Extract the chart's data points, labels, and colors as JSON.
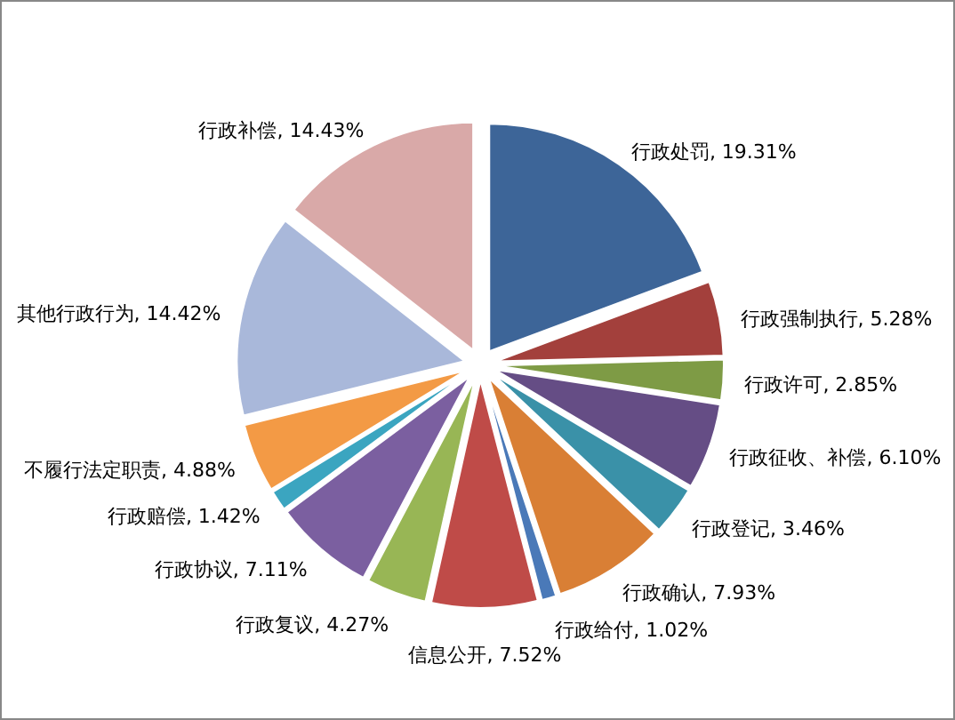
{
  "chart_data": {
    "type": "pie",
    "categories": [
      "行政处罚",
      "行政强制执行",
      "行政许可",
      "行政征收、补偿",
      "行政登记",
      "行政确认",
      "行政给付",
      "信息公开",
      "行政复议",
      "行政协议",
      "行政赔偿",
      "不履行法定职责",
      "其他行政行为",
      "行政补偿"
    ],
    "values": [
      19.31,
      5.28,
      2.85,
      6.1,
      3.46,
      7.93,
      1.02,
      7.52,
      4.27,
      7.11,
      1.42,
      4.88,
      14.42,
      14.43
    ],
    "value_labels": [
      "19.31%",
      "5.28%",
      "2.85%",
      "6.10%",
      "3.46%",
      "7.93%",
      "1.02%",
      "7.52%",
      "4.27%",
      "7.11%",
      "1.42%",
      "4.88%",
      "14.42%",
      "14.43%"
    ],
    "colors": [
      "#3d6598",
      "#a3403c",
      "#7e9b45",
      "#654d85",
      "#3a91a8",
      "#d97f35",
      "#4a79b8",
      "#bf4b48",
      "#98b655",
      "#7b5fa0",
      "#3ba5c0",
      "#f39a45",
      "#a9b8da",
      "#d9a9a8"
    ]
  }
}
